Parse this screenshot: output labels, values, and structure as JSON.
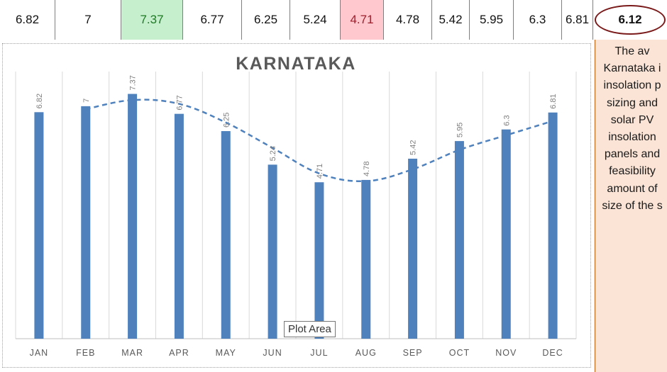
{
  "table_row": {
    "values": [
      "6.82",
      "7",
      "7.37",
      "6.77",
      "6.25",
      "5.24",
      "4.71",
      "4.78",
      "5.42",
      "5.95",
      "6.3",
      "6.81"
    ],
    "highlight_max_index": 2,
    "highlight_min_index": 6,
    "average": "6.12"
  },
  "chart_data": {
    "type": "bar",
    "title": "KARNATAKA",
    "categories": [
      "JAN",
      "FEB",
      "MAR",
      "APR",
      "MAY",
      "JUN",
      "JUL",
      "AUG",
      "SEP",
      "OCT",
      "NOV",
      "DEC"
    ],
    "values": [
      6.82,
      7,
      7.37,
      6.77,
      6.25,
      5.24,
      4.71,
      4.78,
      5.42,
      5.95,
      6.3,
      6.81
    ],
    "data_labels": [
      "6.82",
      "7",
      "7.37",
      "6.77",
      "6.25",
      "5.24",
      "4.71",
      "4.78",
      "5.42",
      "5.95",
      "6.3",
      "6.81"
    ],
    "trendline": "moving-average",
    "xlabel": "",
    "ylabel": "",
    "ylim": [
      0,
      8
    ],
    "grid": "vertical",
    "legend": "none",
    "bar_color": "#4f81bd",
    "trendline_color": "#4f81bd"
  },
  "tooltip": {
    "text": "Plot Area"
  },
  "side_panel": {
    "lines": [
      "The av",
      "Karnataka i",
      "insolation p",
      "sizing and",
      "solar PV",
      "insolation",
      "panels and",
      "feasibility",
      "amount of",
      "size of the s"
    ]
  },
  "colors": {
    "good": "#c6efce",
    "bad": "#ffc7ce",
    "panel": "#fbe4d5",
    "ring": "#7a1a1a"
  }
}
